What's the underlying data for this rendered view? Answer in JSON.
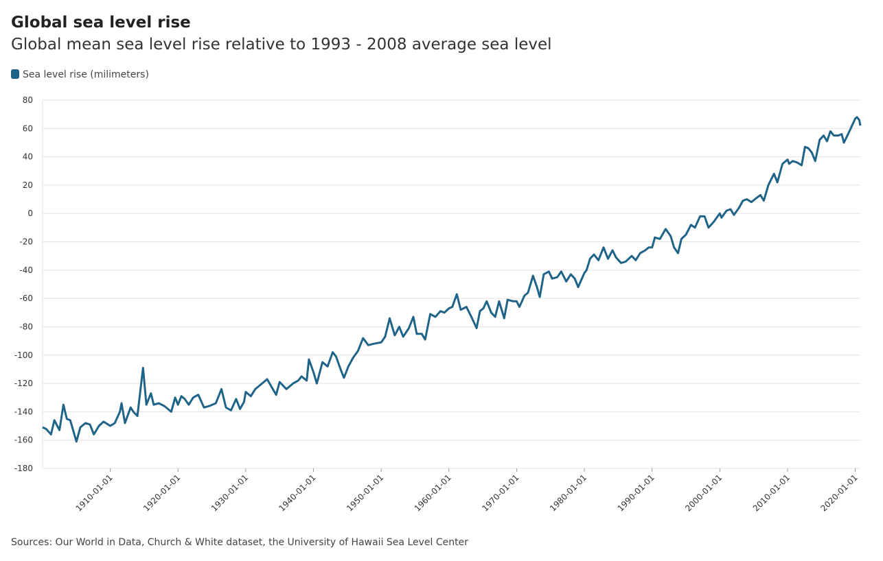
{
  "chart_data": {
    "type": "line",
    "title": "Global sea level rise",
    "subtitle": "Global mean sea level rise relative to 1993 - 2008 average sea level",
    "source": "Sources: Our World in Data, Church & White dataset, the University of Hawaii Sea Level Center",
    "grid": true,
    "legend": "top-left",
    "xlim": [
      "1900-01-01",
      "2020-10-01"
    ],
    "xticks": [
      "1910-01-01",
      "1920-01-01",
      "1930-01-01",
      "1940-01-01",
      "1950-01-01",
      "1960-01-01",
      "1970-01-01",
      "1980-01-01",
      "1990-01-01",
      "2000-01-01",
      "2010-01-01",
      "2020-01-01"
    ],
    "ylim": [
      -180,
      80
    ],
    "yticks": [
      -180,
      -160,
      -140,
      -120,
      -100,
      -80,
      -60,
      -40,
      -20,
      0,
      20,
      40,
      60,
      80
    ],
    "x": [
      "1900-01-01",
      "1900-07-01",
      "1901-04-01",
      "1901-10-01",
      "1902-07-01",
      "1903-02-01",
      "1903-08-01",
      "1904-02-01",
      "1905-01-01",
      "1905-08-01",
      "1906-05-01",
      "1907-01-01",
      "1907-08-01",
      "1908-05-01",
      "1909-01-01",
      "1910-01-01",
      "1910-09-01",
      "1911-06-01",
      "1911-09-01",
      "1912-03-01",
      "1913-01-01",
      "1913-06-01",
      "1914-01-01",
      "1914-11-01",
      "1915-05-01",
      "1916-01-01",
      "1916-06-01",
      "1917-03-01",
      "1918-01-01",
      "1919-01-01",
      "1919-08-01",
      "1920-01-01",
      "1920-07-01",
      "1921-01-01",
      "1921-08-01",
      "1922-04-01",
      "1923-01-01",
      "1923-11-01",
      "1924-08-01",
      "1925-08-01",
      "1926-06-01",
      "1927-02-01",
      "1927-11-01",
      "1928-08-01",
      "1929-03-01",
      "1929-10-01",
      "1930-01-01",
      "1930-10-01",
      "1931-06-01",
      "1932-06-01",
      "1933-03-01",
      "1934-01-01",
      "1934-07-01",
      "1935-01-01",
      "1936-01-01",
      "1937-01-01",
      "1937-10-01",
      "1938-04-01",
      "1939-01-01",
      "1939-05-01",
      "1940-01-01",
      "1940-07-01",
      "1941-05-01",
      "1942-02-01",
      "1942-11-01",
      "1943-05-01",
      "1944-01-01",
      "1944-07-01",
      "1945-03-01",
      "1945-11-01",
      "1946-08-01",
      "1947-05-01",
      "1948-02-01",
      "1948-12-01",
      "1950-01-01",
      "1950-08-01",
      "1951-04-01",
      "1952-01-01",
      "1952-09-01",
      "1953-04-01",
      "1954-02-01",
      "1954-10-01",
      "1955-04-01",
      "1956-01-01",
      "1956-07-01",
      "1957-04-01",
      "1958-01-01",
      "1958-10-01",
      "1959-05-01",
      "1960-01-01",
      "1960-07-01",
      "1961-03-01",
      "1961-10-01",
      "1962-08-01",
      "1963-06-01",
      "1964-02-01",
      "1964-08-01",
      "1965-02-01",
      "1965-08-01",
      "1966-04-01",
      "1966-11-01",
      "1967-06-01",
      "1968-03-01",
      "1968-09-01",
      "1969-07-01",
      "1970-01-01",
      "1970-06-01",
      "1971-03-01",
      "1971-09-01",
      "1972-06-01",
      "1973-01-01",
      "1973-06-01",
      "1974-01-01",
      "1974-10-01",
      "1975-04-01",
      "1976-01-01",
      "1976-08-01",
      "1977-05-01",
      "1978-01-01",
      "1978-08-01",
      "1979-02-01",
      "1980-01-01",
      "1980-05-01",
      "1980-11-01",
      "1981-06-01",
      "1982-02-01",
      "1982-11-01",
      "1983-07-01",
      "1984-03-01",
      "1984-09-01",
      "1985-06-01",
      "1986-02-01",
      "1987-01-01",
      "1987-08-01",
      "1988-04-01",
      "1989-01-01",
      "1989-07-01",
      "1990-01-01",
      "1990-06-01",
      "1991-03-01",
      "1992-01-01",
      "1992-10-01",
      "1993-04-01",
      "1993-11-01",
      "1994-05-01",
      "1995-01-01",
      "1995-10-01",
      "1996-05-01",
      "1997-02-01",
      "1997-10-01",
      "1998-05-01",
      "1999-02-01",
      "2000-01-01",
      "2000-04-01",
      "2001-01-01",
      "2001-08-01",
      "2002-02-01",
      "2002-11-01",
      "2003-06-01",
      "2004-01-01",
      "2004-09-01",
      "2005-03-01",
      "2006-01-01",
      "2006-07-01",
      "2007-03-01",
      "2008-01-01",
      "2008-07-01",
      "2009-04-01",
      "2010-01-01",
      "2010-04-01",
      "2010-10-01",
      "2011-06-01",
      "2012-02-01",
      "2012-08-01",
      "2013-02-01",
      "2013-08-01",
      "2014-02-01",
      "2014-10-01",
      "2015-05-01",
      "2015-11-01",
      "2016-05-01",
      "2016-11-01",
      "2017-07-01",
      "2018-01-01",
      "2018-05-01",
      "2018-11-01",
      "2019-05-01",
      "2020-01-01",
      "2020-04-01",
      "2020-08-01",
      "2020-10-01"
    ],
    "series": [
      {
        "name": "Sea level rise (milimeters)",
        "color": "#1f6488",
        "values": [
          -151,
          -152,
          -156,
          -146,
          -153,
          -135,
          -145,
          -146,
          -161,
          -151,
          -148,
          -149,
          -156,
          -150,
          -147,
          -150,
          -148,
          -140,
          -134,
          -148,
          -137,
          -140,
          -143,
          -109,
          -135,
          -127,
          -135,
          -134,
          -136,
          -140,
          -130,
          -135,
          -129,
          -131,
          -135,
          -130,
          -128,
          -137,
          -136,
          -134,
          -124,
          -137,
          -139,
          -131,
          -138,
          -133,
          -126,
          -129,
          -124,
          -120,
          -117,
          -124,
          -128,
          -119,
          -124,
          -120,
          -118,
          -115,
          -118,
          -103,
          -112,
          -120,
          -105,
          -108,
          -98,
          -101,
          -110,
          -116,
          -108,
          -102,
          -97,
          -88,
          -93,
          -92,
          -91,
          -87,
          -74,
          -86,
          -80,
          -87,
          -81,
          -73,
          -85,
          -85,
          -89,
          -71,
          -73,
          -69,
          -70,
          -67,
          -66,
          -57,
          -68,
          -66,
          -74,
          -81,
          -69,
          -67,
          -62,
          -70,
          -73,
          -62,
          -74,
          -61,
          -62,
          -62,
          -66,
          -58,
          -56,
          -44,
          -52,
          -59,
          -43,
          -41,
          -46,
          -45,
          -41,
          -48,
          -43,
          -46,
          -52,
          -42,
          -40,
          -32,
          -29,
          -33,
          -24,
          -32,
          -26,
          -31,
          -35,
          -34,
          -30,
          -33,
          -28,
          -26,
          -24,
          -24,
          -17,
          -18,
          -11,
          -16,
          -24,
          -28,
          -18,
          -15,
          -8,
          -10,
          -2,
          -2,
          -10,
          -6,
          0,
          -3,
          2,
          3,
          -1,
          4,
          9,
          10,
          8,
          10,
          13,
          9,
          20,
          28,
          22,
          35,
          38,
          35,
          37,
          36,
          34,
          47,
          46,
          43,
          37,
          52,
          55,
          51,
          58,
          55,
          55,
          56,
          50,
          55,
          60,
          67,
          68,
          66,
          62
        ]
      }
    ]
  }
}
